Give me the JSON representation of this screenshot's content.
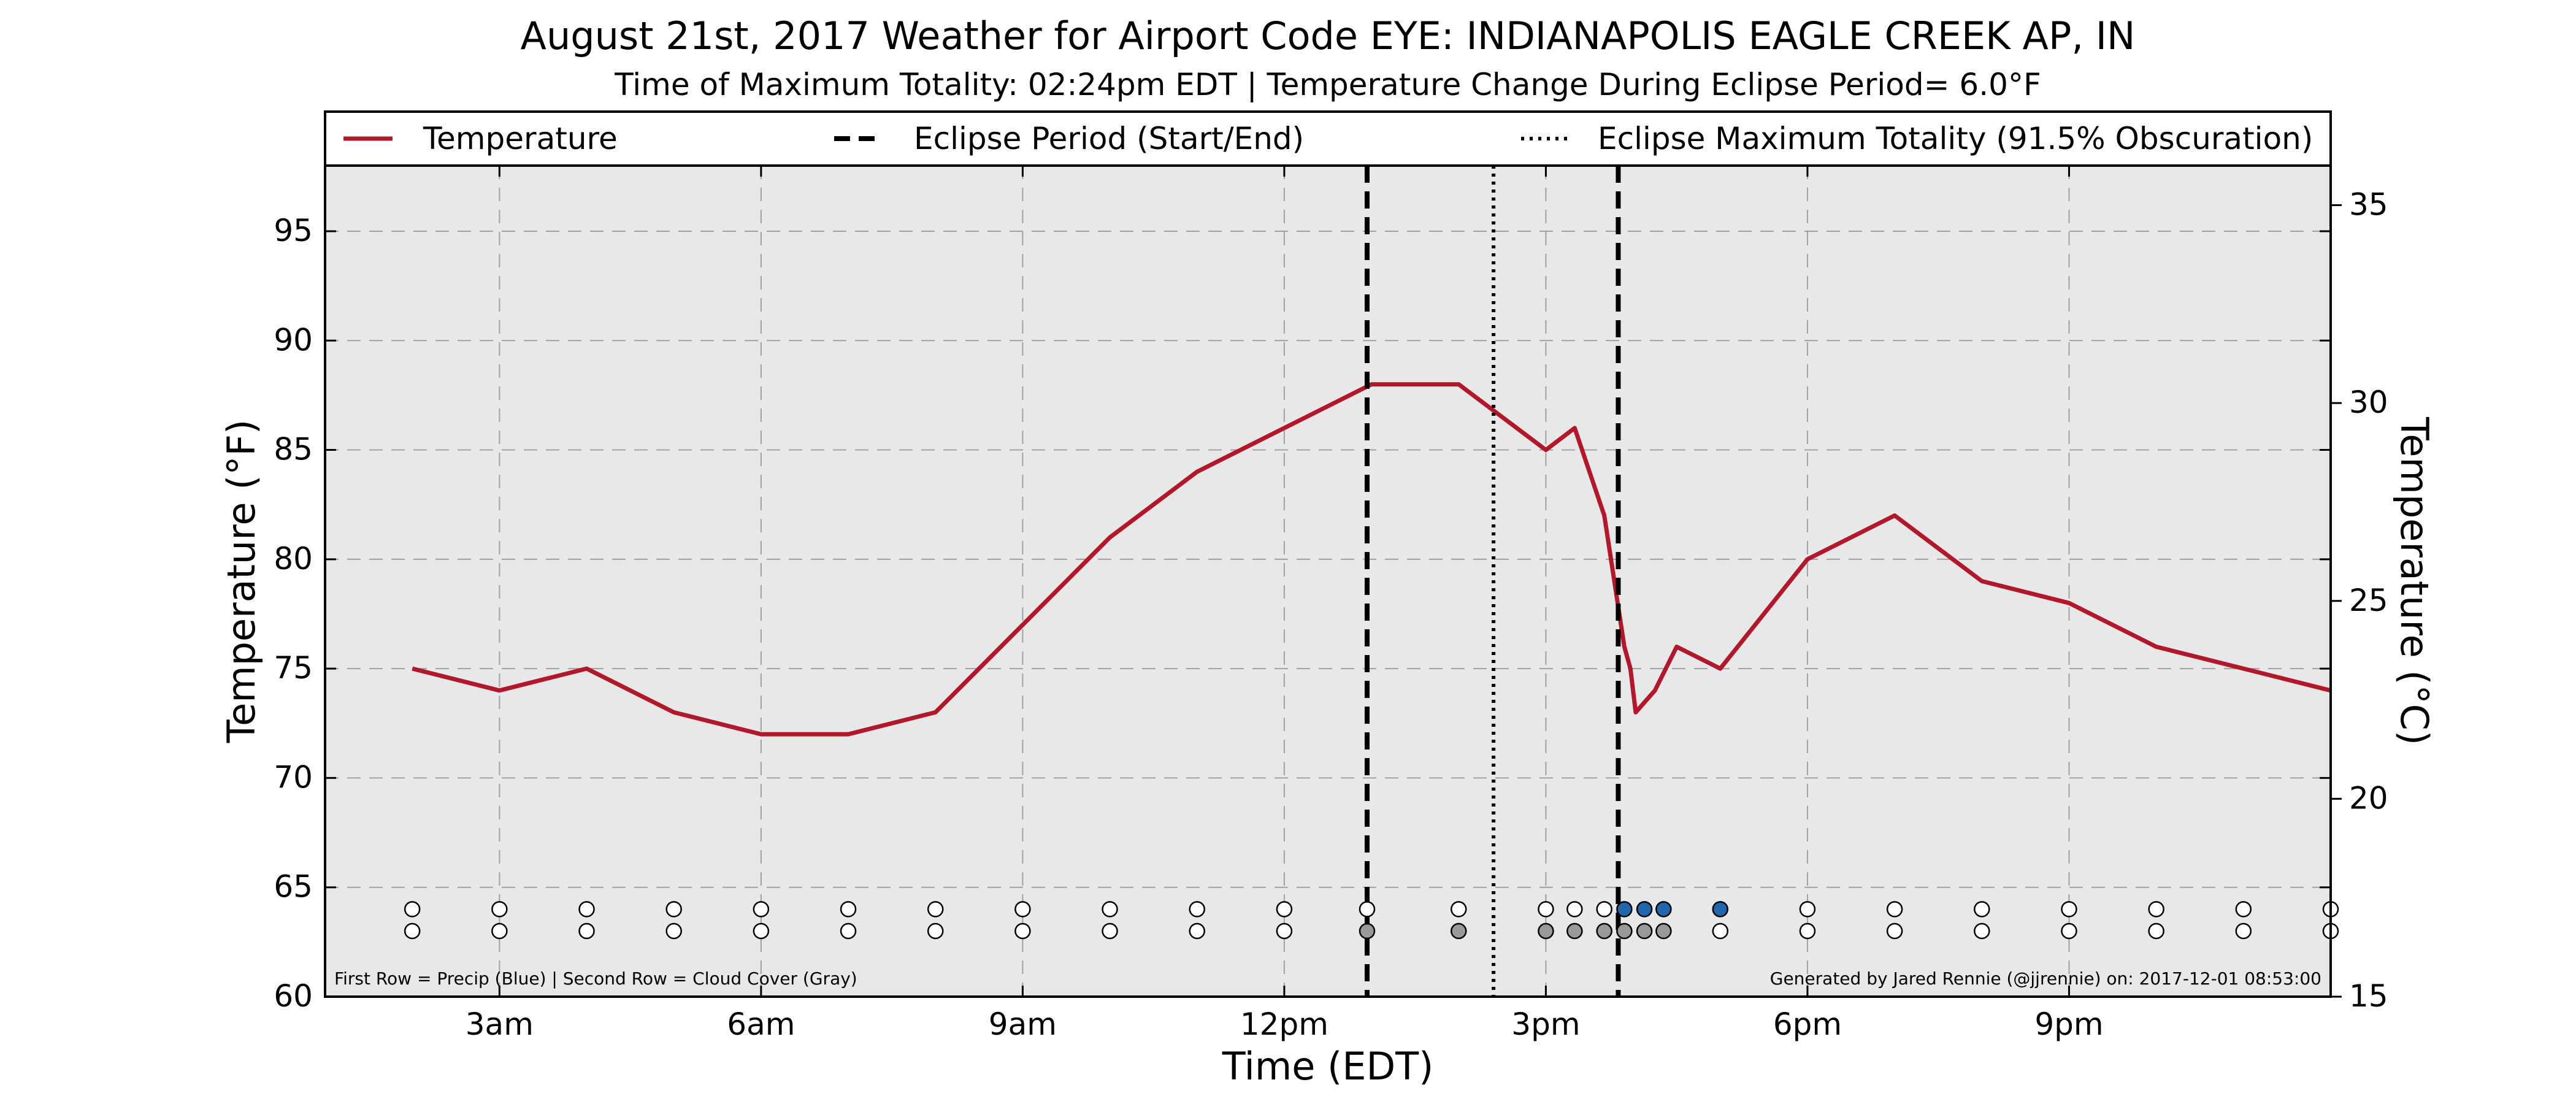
{
  "chart_data": {
    "type": "line",
    "title": "August 21st, 2017 Weather for Airport Code EYE: INDIANAPOLIS EAGLE CREEK AP, IN",
    "subtitle": "Time of Maximum Totality: 02:24pm EDT | Temperature Change During Eclipse Period= 6.0°F",
    "xlabel": "Time (EDT)",
    "ylabel_left": "Temperature (°F)",
    "ylabel_right": "Temperature (°C)",
    "x_unit": "hours since midnight (EDT)",
    "xlim": [
      1.0,
      24.0
    ],
    "ylim": [
      60,
      98
    ],
    "y2lim": [
      15,
      36
    ],
    "x_ticks": [
      {
        "value": 3,
        "label": "3am"
      },
      {
        "value": 6,
        "label": "6am"
      },
      {
        "value": 9,
        "label": "9am"
      },
      {
        "value": 12,
        "label": "12pm"
      },
      {
        "value": 15,
        "label": "3pm"
      },
      {
        "value": 18,
        "label": "6pm"
      },
      {
        "value": 21,
        "label": "9pm"
      }
    ],
    "y_ticks": [
      60,
      65,
      70,
      75,
      80,
      85,
      90,
      95
    ],
    "y2_ticks": [
      15,
      20,
      25,
      30,
      35
    ],
    "grid": true,
    "legend_position": "top",
    "legend": {
      "temperature": "Temperature",
      "eclipse_period": "Eclipse Period (Start/End)",
      "eclipse_max": "Eclipse Maximum Totality (91.5% Obscuration)"
    },
    "series": [
      {
        "name": "Temperature",
        "color": "#b2182b",
        "points": [
          [
            2.0,
            75
          ],
          [
            3.0,
            74
          ],
          [
            4.0,
            75
          ],
          [
            5.0,
            73
          ],
          [
            6.0,
            72
          ],
          [
            7.0,
            72
          ],
          [
            8.0,
            73
          ],
          [
            9.0,
            77
          ],
          [
            10.0,
            81
          ],
          [
            11.0,
            84
          ],
          [
            12.0,
            86
          ],
          [
            13.0,
            88
          ],
          [
            14.0,
            88
          ],
          [
            15.0,
            85
          ],
          [
            15.33,
            86
          ],
          [
            15.67,
            82
          ],
          [
            15.9,
            76
          ],
          [
            15.97,
            75
          ],
          [
            16.03,
            73
          ],
          [
            16.25,
            74
          ],
          [
            16.5,
            76
          ],
          [
            17.0,
            75
          ],
          [
            18.0,
            80
          ],
          [
            19.0,
            82
          ],
          [
            20.0,
            79
          ],
          [
            21.0,
            78
          ],
          [
            22.0,
            76
          ],
          [
            23.0,
            75
          ],
          [
            24.0,
            74
          ]
        ]
      }
    ],
    "eclipse": {
      "start": 12.95,
      "end": 15.83,
      "max": 14.4
    },
    "status_dots": {
      "precip_color": "#2166ac",
      "cloud_color": "#999999",
      "clear_color": "#ffffff",
      "precip_y": 64,
      "cloud_y": 63,
      "observations": [
        {
          "x": 2.0,
          "precip": false,
          "cloud": false
        },
        {
          "x": 3.0,
          "precip": false,
          "cloud": false
        },
        {
          "x": 4.0,
          "precip": false,
          "cloud": false
        },
        {
          "x": 5.0,
          "precip": false,
          "cloud": false
        },
        {
          "x": 6.0,
          "precip": false,
          "cloud": false
        },
        {
          "x": 7.0,
          "precip": false,
          "cloud": false
        },
        {
          "x": 8.0,
          "precip": false,
          "cloud": false
        },
        {
          "x": 9.0,
          "precip": false,
          "cloud": false
        },
        {
          "x": 10.0,
          "precip": false,
          "cloud": false
        },
        {
          "x": 11.0,
          "precip": false,
          "cloud": false
        },
        {
          "x": 12.0,
          "precip": false,
          "cloud": false
        },
        {
          "x": 12.95,
          "precip": false,
          "cloud": true
        },
        {
          "x": 14.0,
          "precip": false,
          "cloud": true
        },
        {
          "x": 15.0,
          "precip": false,
          "cloud": true
        },
        {
          "x": 15.33,
          "precip": false,
          "cloud": true
        },
        {
          "x": 15.67,
          "precip": false,
          "cloud": true
        },
        {
          "x": 15.9,
          "precip": true,
          "cloud": true
        },
        {
          "x": 16.13,
          "precip": true,
          "cloud": true
        },
        {
          "x": 16.35,
          "precip": true,
          "cloud": true
        },
        {
          "x": 17.0,
          "precip": true,
          "cloud": false
        },
        {
          "x": 18.0,
          "precip": false,
          "cloud": false
        },
        {
          "x": 19.0,
          "precip": false,
          "cloud": false
        },
        {
          "x": 20.0,
          "precip": false,
          "cloud": false
        },
        {
          "x": 21.0,
          "precip": false,
          "cloud": false
        },
        {
          "x": 22.0,
          "precip": false,
          "cloud": false
        },
        {
          "x": 23.0,
          "precip": false,
          "cloud": false
        },
        {
          "x": 24.0,
          "precip": false,
          "cloud": false
        }
      ]
    },
    "footnote_left": "First Row = Precip (Blue) | Second Row = Cloud Cover (Gray)",
    "footnote_right": "Generated by Jared Rennie (@jjrennie) on: 2017-12-01 08:53:00"
  }
}
